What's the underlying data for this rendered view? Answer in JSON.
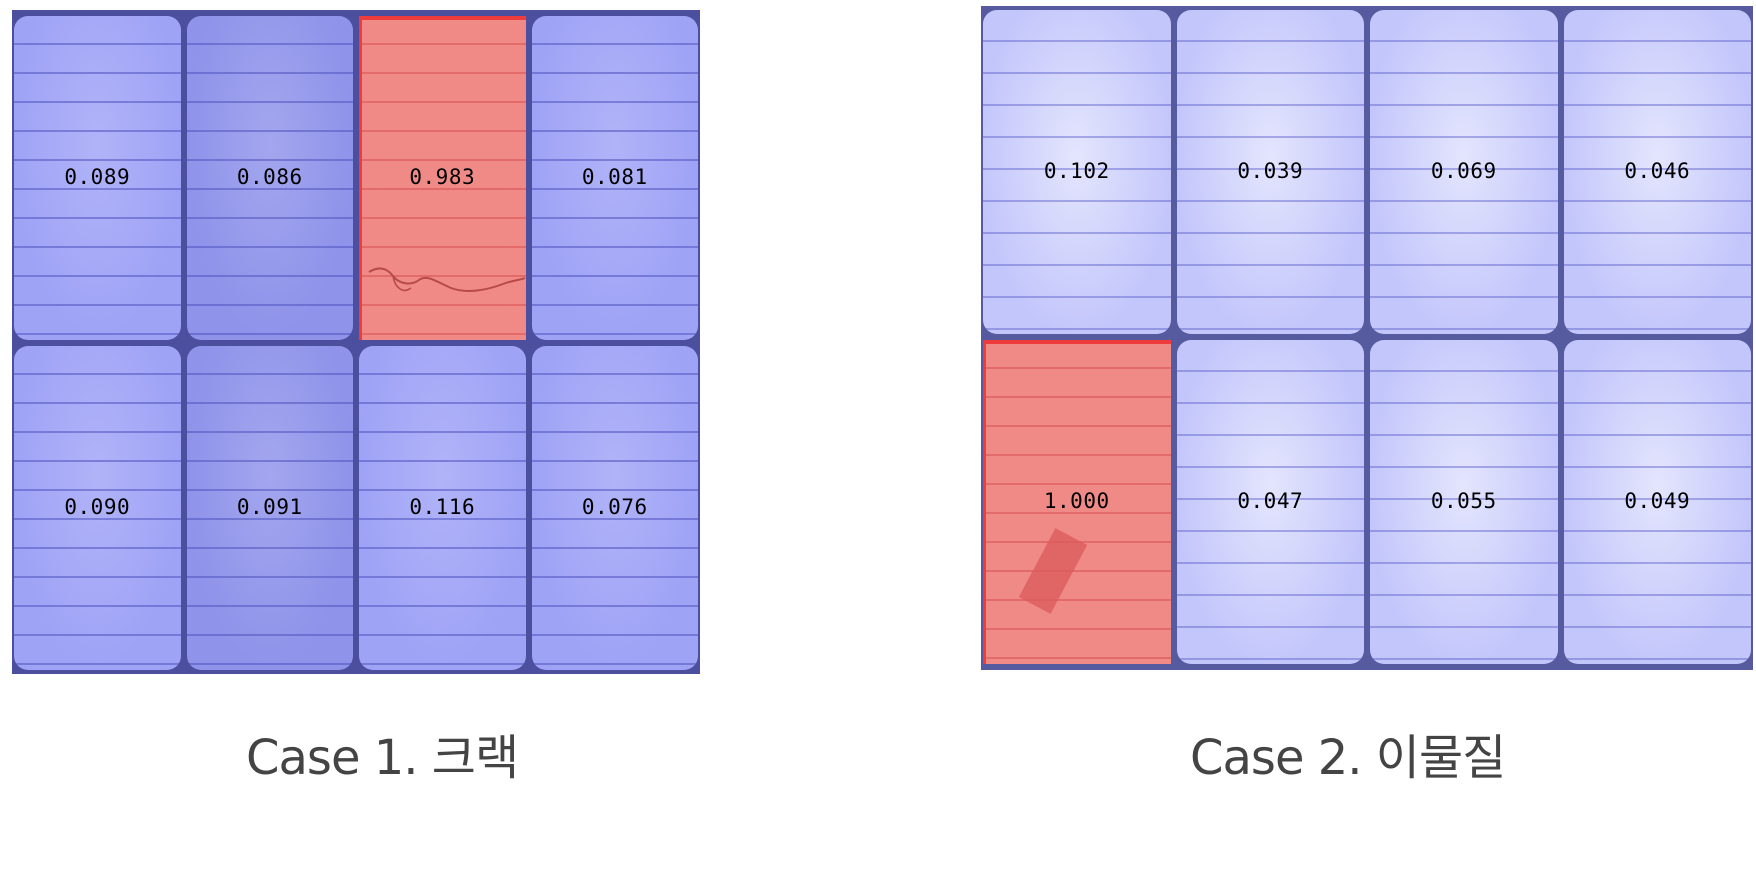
{
  "case1": {
    "caption": "Case 1. 크랙",
    "cells": [
      {
        "score": "0.089",
        "defect": false
      },
      {
        "score": "0.086",
        "defect": false,
        "dark": true
      },
      {
        "score": "0.983",
        "defect": true
      },
      {
        "score": "0.081",
        "defect": false
      },
      {
        "score": "0.090",
        "defect": false
      },
      {
        "score": "0.091",
        "defect": false,
        "dark": true
      },
      {
        "score": "0.116",
        "defect": false
      },
      {
        "score": "0.076",
        "defect": false
      }
    ]
  },
  "case2": {
    "caption": "Case 2. 이물질",
    "cells": [
      {
        "score": "0.102",
        "defect": false
      },
      {
        "score": "0.039",
        "defect": false
      },
      {
        "score": "0.069",
        "defect": false
      },
      {
        "score": "0.046",
        "defect": false
      },
      {
        "score": "1.000",
        "defect": true
      },
      {
        "score": "0.047",
        "defect": false
      },
      {
        "score": "0.055",
        "defect": false
      },
      {
        "score": "0.049",
        "defect": false
      }
    ]
  },
  "colors": {
    "normal_overlay": "#9fa3f6",
    "defect_overlay": "#f08a86",
    "defect_border": "#ee3b3b"
  }
}
